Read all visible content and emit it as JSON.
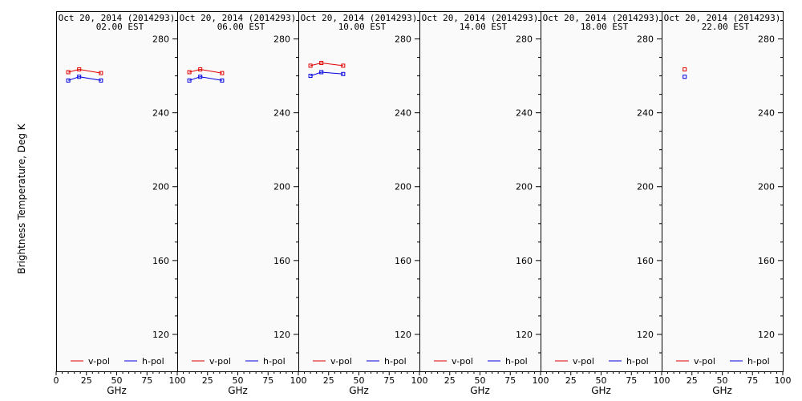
{
  "chart_data": {
    "type": "line",
    "ylabel": "Brightness Temperature, Deg K",
    "xlabel": "GHz",
    "xlim": [
      0,
      100
    ],
    "ylim": [
      100,
      295
    ],
    "x_ticks": [
      0,
      25,
      50,
      75,
      100
    ],
    "x_tick_labels": [
      "0",
      "25",
      "50",
      "75",
      "100"
    ],
    "y_ticks": [
      120,
      160,
      200,
      240,
      280
    ],
    "legend": [
      {
        "name": "v-pol",
        "color": "#e00000"
      },
      {
        "name": "h-pol",
        "color": "#0000e0"
      }
    ],
    "panels": [
      {
        "title": "Oct 20, 2014 (2014293)",
        "subtitle": "02.00 EST",
        "series": [
          {
            "name": "v-pol",
            "color": "#e00000",
            "x": [
              10,
              19,
              37
            ],
            "y": [
              262,
              263.5,
              261.5
            ]
          },
          {
            "name": "h-pol",
            "color": "#0000e0",
            "x": [
              10,
              19,
              37
            ],
            "y": [
              257.5,
              259.5,
              257.5
            ]
          }
        ]
      },
      {
        "title": "Oct 20, 2014 (2014293)",
        "subtitle": "06.00 EST",
        "series": [
          {
            "name": "v-pol",
            "color": "#e00000",
            "x": [
              10,
              19,
              37
            ],
            "y": [
              262,
              263.5,
              261.5
            ]
          },
          {
            "name": "h-pol",
            "color": "#0000e0",
            "x": [
              10,
              19,
              37
            ],
            "y": [
              257.5,
              259.5,
              257.5
            ]
          }
        ]
      },
      {
        "title": "Oct 20, 2014 (2014293)",
        "subtitle": "10.00 EST",
        "series": [
          {
            "name": "v-pol",
            "color": "#e00000",
            "x": [
              10,
              19,
              37
            ],
            "y": [
              265.5,
              267,
              265.5
            ]
          },
          {
            "name": "h-pol",
            "color": "#0000e0",
            "x": [
              10,
              19,
              37
            ],
            "y": [
              260,
              262,
              261
            ]
          }
        ]
      },
      {
        "title": "Oct 20, 2014 (2014293)",
        "subtitle": "14.00 EST",
        "series": [
          {
            "name": "v-pol",
            "color": "#e00000",
            "x": [],
            "y": []
          },
          {
            "name": "h-pol",
            "color": "#0000e0",
            "x": [],
            "y": []
          }
        ]
      },
      {
        "title": "Oct 20, 2014 (2014293)",
        "subtitle": "18.00 EST",
        "series": [
          {
            "name": "v-pol",
            "color": "#e00000",
            "x": [],
            "y": []
          },
          {
            "name": "h-pol",
            "color": "#0000e0",
            "x": [],
            "y": []
          }
        ]
      },
      {
        "title": "Oct 20, 2014 (2014293)",
        "subtitle": "22.00 EST",
        "series": [
          {
            "name": "v-pol",
            "color": "#e00000",
            "x": [
              19
            ],
            "y": [
              263.5
            ]
          },
          {
            "name": "h-pol",
            "color": "#0000e0",
            "x": [
              19
            ],
            "y": [
              259.5
            ]
          }
        ]
      }
    ]
  }
}
